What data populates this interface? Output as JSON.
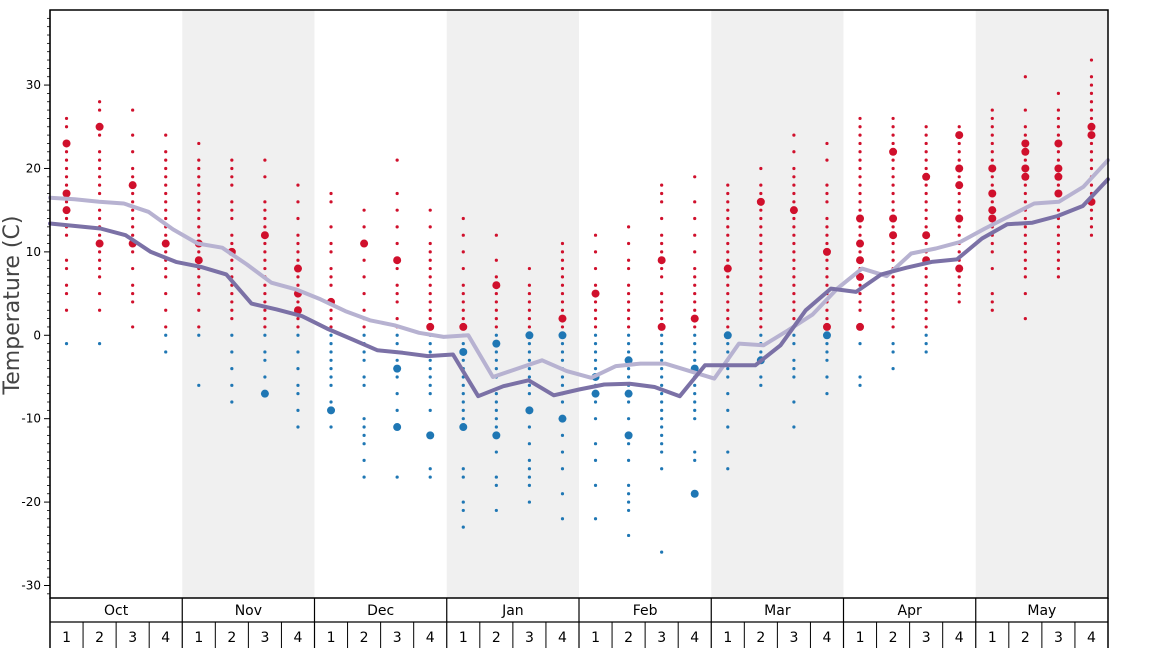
{
  "chart_data": {
    "type": "scatter",
    "ylabel": "Temperature (C)",
    "ylim": [
      -31.5,
      39
    ],
    "yticks": [
      30,
      20,
      10,
      0,
      -10,
      -20,
      -30
    ],
    "months": [
      "Oct",
      "Nov",
      "Dec",
      "Jan",
      "Feb",
      "Mar",
      "Apr",
      "May"
    ],
    "weeks": [
      "1",
      "2",
      "3",
      "4"
    ],
    "grid": false,
    "colors": {
      "warm_points": "#d0102c",
      "cold_points": "#1f77b4",
      "line_high": "#b7b2d1",
      "line_low": "#7b71a6",
      "band": "#f0f0f0"
    },
    "series": [
      {
        "values": [
          16.5,
          16.3,
          16.0,
          15.8,
          14.8,
          12.7,
          11.0,
          10.5,
          8.5,
          6.3,
          5.5,
          4.3,
          2.9,
          1.8,
          1.2,
          0.3,
          -0.2,
          0.0,
          -5.0,
          -4.0,
          -3.0,
          -4.3,
          -5.1,
          -3.7,
          -3.4,
          -3.4,
          -4.3,
          -5.2,
          -1.0,
          -1.2,
          0.6,
          2.5,
          5.6,
          8.0,
          7.1,
          9.8,
          10.4,
          11.2,
          12.8,
          14.3,
          15.8,
          16.0,
          17.8,
          21.0
        ]
      },
      {
        "values": [
          13.4,
          13.1,
          12.8,
          12.0,
          10.0,
          8.8,
          8.2,
          7.3,
          3.8,
          3.1,
          2.3,
          0.8,
          -0.5,
          -1.8,
          -2.1,
          -2.5,
          -2.3,
          -7.3,
          -6.1,
          -5.4,
          -7.2,
          -6.5,
          -5.9,
          -5.8,
          -6.2,
          -7.3,
          -3.6,
          -3.6,
          -3.6,
          -1.2,
          3.0,
          5.6,
          5.2,
          7.3,
          8.1,
          8.8,
          9.1,
          11.6,
          13.3,
          13.5,
          14.3,
          15.5,
          18.7
        ]
      }
    ],
    "points": [
      {
        "week": 0,
        "values": [
          26,
          25,
          23,
          22,
          21,
          20,
          19,
          18,
          17,
          16,
          15,
          14,
          13,
          12,
          9,
          8,
          6,
          5,
          3,
          -1
        ],
        "large": [
          23,
          17,
          15
        ]
      },
      {
        "week": 1,
        "values": [
          28,
          27,
          25,
          24,
          22,
          21,
          20,
          19,
          18,
          17,
          16,
          15,
          14,
          13,
          12,
          11,
          10,
          9,
          8,
          7,
          5,
          3,
          -1
        ],
        "large": [
          25,
          11
        ]
      },
      {
        "week": 2,
        "values": [
          27,
          24,
          22,
          20,
          19,
          18,
          17,
          16,
          15,
          14,
          13,
          12,
          11,
          10,
          8,
          6,
          5,
          4,
          1
        ],
        "large": [
          18,
          11
        ]
      },
      {
        "week": 3,
        "values": [
          24,
          22,
          21,
          20,
          19,
          18,
          17,
          16,
          15,
          14,
          13,
          12,
          11,
          10,
          9,
          8,
          7,
          5,
          3,
          1,
          0,
          -2
        ],
        "large": [
          11
        ]
      },
      {
        "week": 4,
        "values": [
          23,
          21,
          20,
          19,
          18,
          17,
          16,
          15,
          14,
          13,
          12,
          11,
          10,
          9,
          8,
          7,
          6,
          5,
          3,
          1,
          0,
          -6
        ],
        "large": [
          9,
          11
        ]
      },
      {
        "week": 5,
        "values": [
          21,
          20,
          19,
          18,
          16,
          15,
          14,
          12,
          11,
          10,
          9,
          8,
          7,
          6,
          5,
          4,
          3,
          2,
          0,
          -2,
          -4,
          -6,
          -8
        ],
        "large": [
          10
        ]
      },
      {
        "week": 6,
        "values": [
          21,
          19,
          16,
          15,
          14,
          13,
          12,
          11,
          10,
          9,
          8,
          7,
          6,
          5,
          4,
          3,
          2,
          1,
          0,
          -2,
          -3,
          -5,
          -7
        ],
        "large": [
          12,
          -7
        ]
      },
      {
        "week": 7,
        "values": [
          18,
          16,
          14,
          12,
          11,
          10,
          9,
          8,
          7,
          6,
          5,
          4,
          3,
          2,
          1,
          0,
          -2,
          -4,
          -6,
          -7,
          -9,
          -11
        ],
        "large": [
          8,
          5,
          3
        ]
      },
      {
        "week": 8,
        "values": [
          17,
          16,
          13,
          11,
          10,
          8,
          7,
          6,
          4,
          3,
          2,
          1,
          0,
          -1,
          -2,
          -3,
          -4,
          -5,
          -6,
          -8,
          -9,
          -11
        ],
        "large": [
          4,
          -9
        ]
      },
      {
        "week": 9,
        "values": [
          15,
          13,
          11,
          9,
          7,
          5,
          3,
          2,
          1,
          0,
          -1,
          -2,
          -3,
          -5,
          -6,
          -10,
          -11,
          -12,
          -13,
          -15,
          -17
        ],
        "large": [
          11
        ]
      },
      {
        "week": 10,
        "values": [
          21,
          17,
          15,
          13,
          11,
          9,
          8,
          6,
          5,
          4,
          2,
          1,
          0,
          -1,
          -2,
          -3,
          -4,
          -5,
          -7,
          -9,
          -11,
          -17
        ],
        "large": [
          9,
          -4,
          -11
        ]
      },
      {
        "week": 11,
        "values": [
          15,
          13,
          11,
          10,
          9,
          8,
          7,
          6,
          5,
          4,
          3,
          2,
          1,
          0,
          -1,
          -2,
          -3,
          -4,
          -5,
          -6,
          -7,
          -9,
          -12,
          -16,
          -17
        ],
        "large": [
          -12,
          1
        ]
      },
      {
        "week": 12,
        "values": [
          14,
          12,
          10,
          8,
          6,
          5,
          4,
          3,
          2,
          1,
          0,
          -1,
          -2,
          -3,
          -4,
          -5,
          -6,
          -7,
          -8,
          -9,
          -10,
          -11,
          -16,
          -17,
          -20,
          -21,
          -23
        ],
        "large": [
          1,
          -2,
          -11
        ]
      },
      {
        "week": 13,
        "values": [
          12,
          9,
          7,
          6,
          5,
          4,
          3,
          2,
          1,
          0,
          -1,
          -2,
          -3,
          -4,
          -5,
          -7,
          -8,
          -9,
          -10,
          -11,
          -12,
          -14,
          -17,
          -18,
          -21
        ],
        "large": [
          6,
          -1,
          -12
        ]
      },
      {
        "week": 14,
        "values": [
          8,
          6,
          5,
          4,
          3,
          2,
          1,
          0,
          -1,
          -2,
          -3,
          -4,
          -5,
          -6,
          -7,
          -9,
          -11,
          -13,
          -15,
          -16,
          -17,
          -18,
          -20
        ],
        "large": [
          0,
          -9
        ]
      },
      {
        "week": 15,
        "values": [
          11,
          10,
          9,
          8,
          7,
          6,
          5,
          4,
          3,
          2,
          1,
          0,
          -1,
          -2,
          -3,
          -4,
          -5,
          -6,
          -7,
          -8,
          -10,
          -12,
          -14,
          -16,
          -19,
          -22
        ],
        "large": [
          2,
          0,
          -10
        ]
      },
      {
        "week": 16,
        "values": [
          12,
          10,
          8,
          6,
          5,
          4,
          3,
          2,
          1,
          0,
          -1,
          -2,
          -3,
          -4,
          -5,
          -6,
          -7,
          -8,
          -10,
          -13,
          -15,
          -18,
          -22
        ],
        "large": [
          5,
          -5,
          -7
        ]
      },
      {
        "week": 17,
        "values": [
          13,
          11,
          9,
          8,
          6,
          5,
          4,
          3,
          2,
          1,
          0,
          -1,
          -2,
          -3,
          -4,
          -5,
          -6,
          -7,
          -8,
          -10,
          -12,
          -13,
          -15,
          -18,
          -19,
          -20,
          -21,
          -24
        ],
        "large": [
          -3,
          -7,
          -12
        ]
      },
      {
        "week": 18,
        "values": [
          18,
          17,
          16,
          14,
          12,
          11,
          10,
          9,
          8,
          7,
          5,
          4,
          3,
          2,
          1,
          0,
          -1,
          -2,
          -3,
          -4,
          -5,
          -6,
          -7,
          -8,
          -9,
          -10,
          -11,
          -12,
          -13,
          -14,
          -16,
          -26
        ],
        "large": [
          9,
          1
        ]
      },
      {
        "week": 19,
        "values": [
          19,
          16,
          14,
          12,
          10,
          8,
          7,
          6,
          5,
          4,
          3,
          2,
          1,
          0,
          -1,
          -2,
          -3,
          -4,
          -5,
          -6,
          -7,
          -8,
          -9,
          -10,
          -14,
          -15,
          -19
        ],
        "large": [
          2,
          -4,
          -19
        ]
      },
      {
        "week": 20,
        "values": [
          18,
          17,
          16,
          15,
          14,
          13,
          12,
          11,
          10,
          9,
          8,
          7,
          6,
          5,
          4,
          3,
          2,
          1,
          0,
          -1,
          -2,
          -3,
          -4,
          -5,
          -7,
          -9,
          -11,
          -14,
          -16
        ],
        "large": [
          8,
          0
        ]
      },
      {
        "week": 21,
        "values": [
          20,
          18,
          17,
          16,
          15,
          14,
          13,
          12,
          11,
          10,
          9,
          8,
          7,
          6,
          5,
          4,
          3,
          2,
          1,
          0,
          -1,
          -2,
          -3,
          -5,
          -6
        ],
        "large": [
          16,
          -3
        ]
      },
      {
        "week": 22,
        "values": [
          24,
          22,
          20,
          19,
          18,
          17,
          16,
          15,
          14,
          13,
          12,
          11,
          10,
          9,
          8,
          7,
          6,
          5,
          4,
          3,
          2,
          1,
          0,
          -1,
          -3,
          -4,
          -5,
          -8,
          -11
        ],
        "large": [
          15
        ]
      },
      {
        "week": 23,
        "values": [
          23,
          21,
          18,
          17,
          16,
          14,
          13,
          12,
          11,
          10,
          9,
          8,
          7,
          6,
          5,
          4,
          3,
          2,
          1,
          0,
          -1,
          -2,
          -3,
          -5,
          -7
        ],
        "large": [
          10,
          1,
          0
        ]
      },
      {
        "week": 24,
        "values": [
          26,
          25,
          24,
          23,
          22,
          21,
          20,
          19,
          18,
          17,
          16,
          15,
          14,
          13,
          12,
          11,
          10,
          9,
          8,
          7,
          6,
          5,
          4,
          3,
          1,
          -1,
          -5,
          -6
        ],
        "large": [
          14,
          11,
          9,
          7,
          1
        ]
      },
      {
        "week": 25,
        "values": [
          26,
          25,
          24,
          23,
          22,
          21,
          20,
          19,
          18,
          17,
          16,
          15,
          14,
          13,
          12,
          11,
          10,
          9,
          8,
          7,
          6,
          5,
          4,
          3,
          2,
          1,
          -1,
          -2,
          -4
        ],
        "large": [
          22,
          14,
          12
        ]
      },
      {
        "week": 26,
        "values": [
          25,
          24,
          23,
          22,
          21,
          20,
          19,
          18,
          17,
          16,
          15,
          14,
          13,
          12,
          11,
          10,
          9,
          8,
          7,
          6,
          5,
          4,
          3,
          2,
          1,
          0,
          -1,
          -2
        ],
        "large": [
          19,
          12,
          9
        ]
      },
      {
        "week": 27,
        "values": [
          25,
          24,
          23,
          22,
          21,
          20,
          19,
          18,
          17,
          16,
          15,
          14,
          13,
          12,
          11,
          10,
          9,
          8,
          7,
          6,
          5,
          4
        ],
        "large": [
          24,
          20,
          18,
          14,
          8
        ]
      },
      {
        "week": 28,
        "values": [
          27,
          26,
          25,
          24,
          23,
          22,
          21,
          20,
          19,
          18,
          17,
          16,
          15,
          14,
          13,
          12,
          11,
          10,
          8,
          5,
          4,
          3
        ],
        "large": [
          20,
          17,
          15,
          14
        ]
      },
      {
        "week": 29,
        "values": [
          31,
          27,
          25,
          24,
          23,
          22,
          21,
          20,
          19,
          18,
          17,
          16,
          15,
          14,
          13,
          12,
          11,
          10,
          9,
          8,
          7,
          5,
          2
        ],
        "large": [
          23,
          22,
          20,
          19
        ]
      },
      {
        "week": 30,
        "values": [
          29,
          27,
          26,
          25,
          24,
          23,
          22,
          21,
          20,
          19,
          18,
          17,
          16,
          15,
          14,
          13,
          12,
          11,
          10,
          9,
          8,
          7
        ],
        "large": [
          23,
          20,
          19,
          17
        ]
      },
      {
        "week": 31,
        "values": [
          33,
          31,
          30,
          29,
          28,
          27,
          26,
          25,
          24,
          23,
          22,
          21,
          20,
          19,
          18,
          17,
          16,
          15,
          14,
          13,
          12
        ],
        "large": [
          25,
          24,
          16
        ]
      }
    ]
  }
}
